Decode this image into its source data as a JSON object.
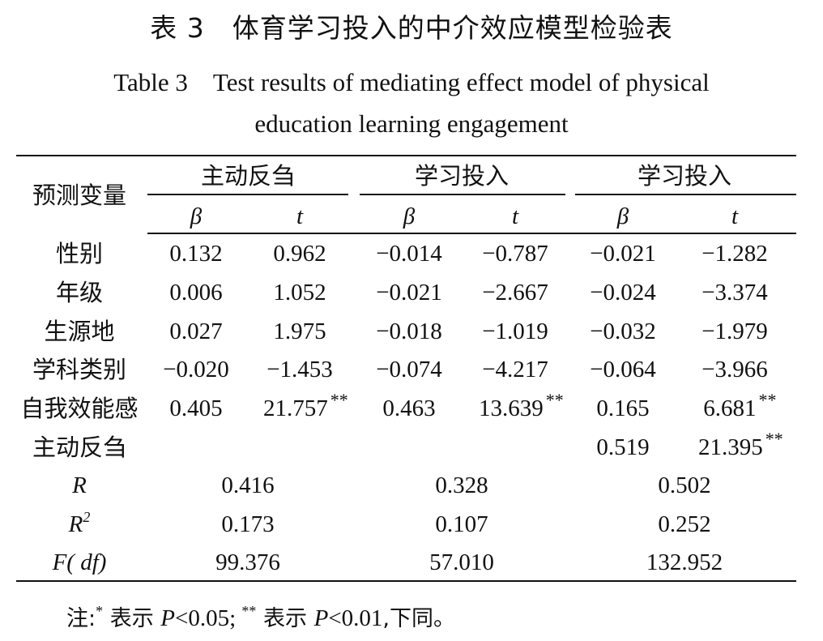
{
  "title_cn": "表 3　体育学习投入的中介效应模型检验表",
  "title_en_line1": "Table 3　Test results of mediating effect model of physical",
  "title_en_line2": "education learning engagement",
  "header": {
    "predictor": "预测变量",
    "groups": [
      "主动反刍",
      "学习投入",
      "学习投入"
    ],
    "sub": {
      "beta": "β",
      "t": "t"
    }
  },
  "rows": [
    {
      "label": "性别",
      "vals": [
        "0.132",
        "0.962",
        "−0.014",
        "−0.787",
        "−0.021",
        "−1.282"
      ],
      "stars": [
        "",
        "",
        "",
        "",
        "",
        ""
      ]
    },
    {
      "label": "年级",
      "vals": [
        "0.006",
        "1.052",
        "−0.021",
        "−2.667",
        "−0.024",
        "−3.374"
      ],
      "stars": [
        "",
        "",
        "",
        "",
        "",
        ""
      ]
    },
    {
      "label": "生源地",
      "vals": [
        "0.027",
        "1.975",
        "−0.018",
        "−1.019",
        "−0.032",
        "−1.979"
      ],
      "stars": [
        "",
        "",
        "",
        "",
        "",
        ""
      ]
    },
    {
      "label": "学科类别",
      "vals": [
        "−0.020",
        "−1.453",
        "−0.074",
        "−4.217",
        "−0.064",
        "−3.966"
      ],
      "stars": [
        "",
        "",
        "",
        "",
        "",
        ""
      ]
    },
    {
      "label": "自我效能感",
      "vals": [
        "0.405",
        "21.757",
        "0.463",
        "13.639",
        "0.165",
        "6.681"
      ],
      "stars": [
        "",
        "**",
        "",
        "**",
        "",
        "**"
      ]
    },
    {
      "label": "主动反刍",
      "vals": [
        "",
        "",
        "",
        "",
        "0.519",
        "21.395"
      ],
      "stars": [
        "",
        "",
        "",
        "",
        "",
        "**"
      ]
    }
  ],
  "stats": [
    {
      "label": "R",
      "sup": "",
      "vals": [
        "0.416",
        "0.328",
        "0.502"
      ]
    },
    {
      "label": "R",
      "sup": "2",
      "vals": [
        "0.173",
        "0.107",
        "0.252"
      ]
    },
    {
      "label": "F( df)",
      "sup": "",
      "vals": [
        "99.376",
        "57.010",
        "132.952"
      ]
    }
  ],
  "note": {
    "prefix": "注:",
    "star1": "*",
    "text1": " 表示 ",
    "p1": "P",
    "v1": "<0.05; ",
    "star2": "**",
    "text2": " 表示 ",
    "p2": "P",
    "v2": "<0.01",
    "text3": ",下同。"
  }
}
